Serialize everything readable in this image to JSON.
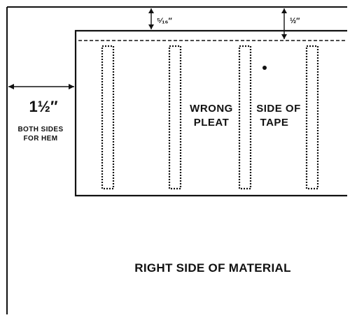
{
  "labels": {
    "hem_width": "1½″",
    "hem_note_line1": "BOTH SIDES",
    "hem_note_line2": "FOR HEM",
    "top_offset": "⁵⁄₁₆″",
    "tape_offset": "½″",
    "wrong_side_line1": "WRONG",
    "wrong_side_line2": "PLEAT",
    "tape_side_line1": "SIDE OF",
    "tape_side_line2": "TAPE",
    "material_side": "RIGHT SIDE OF MATERIAL"
  }
}
